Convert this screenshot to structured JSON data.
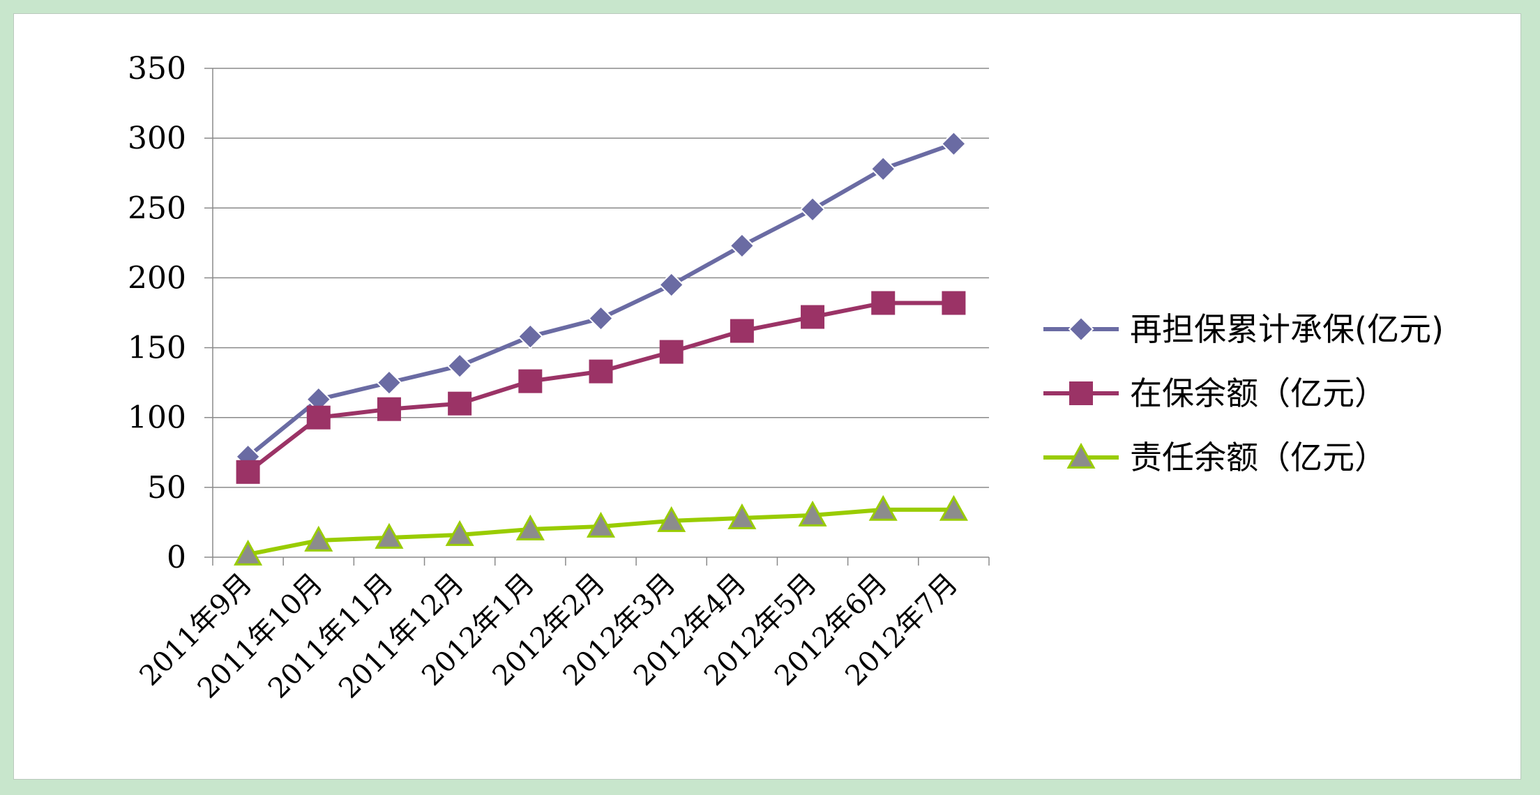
{
  "chart_data": {
    "type": "line",
    "title": "",
    "xlabel": "",
    "ylabel": "",
    "ylim": [
      0,
      350
    ],
    "yticks": [
      0,
      50,
      100,
      150,
      200,
      250,
      300,
      350
    ],
    "grid": true,
    "legend_position": "right",
    "categories": [
      "2011年9月",
      "2011年10月",
      "2011年11月",
      "2011年12月",
      "2012年1月",
      "2012年2月",
      "2012年3月",
      "2012年4月",
      "2012年5月",
      "2012年6月",
      "2012年7月"
    ],
    "series": [
      {
        "name": "再担保累计承保(亿元)",
        "color": "#6a6ba3",
        "marker": "diamond",
        "values": [
          72,
          113,
          125,
          137,
          158,
          171,
          195,
          223,
          249,
          278,
          296
        ]
      },
      {
        "name": "在保余额（亿元）",
        "color": "#9b3366",
        "marker": "square",
        "values": [
          61,
          100,
          106,
          110,
          126,
          133,
          147,
          162,
          172,
          182,
          182
        ]
      },
      {
        "name": "责任余额（亿元）",
        "color": "#99cc00",
        "marker": "triangle",
        "marker_fill": "#8c8c8c",
        "values": [
          2,
          12,
          14,
          16,
          20,
          22,
          26,
          28,
          30,
          34,
          34
        ]
      }
    ]
  }
}
